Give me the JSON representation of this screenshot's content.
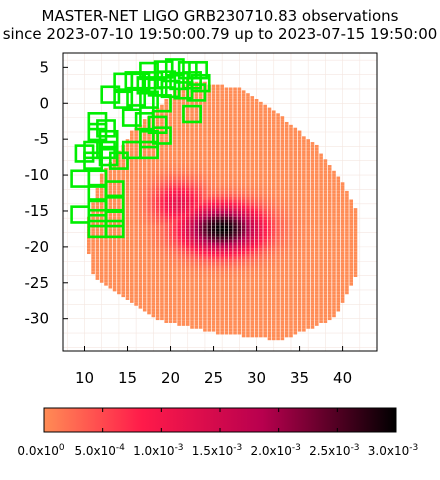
{
  "chart_data": {
    "type": "scatter",
    "title": "MASTER-NET LIGO GRB230710.83 observations",
    "subtitle": "since 2023-07-10 19:50:00.79 up to 2023-07-15 19:50:00",
    "xlabel": "",
    "ylabel": "",
    "xlim": [
      7.5,
      44
    ],
    "ylim": [
      -34.5,
      7
    ],
    "x_ticks": [
      10,
      15,
      20,
      25,
      30,
      35,
      40
    ],
    "y_ticks": [
      5,
      0,
      -5,
      -10,
      -15,
      -20,
      -25,
      -30
    ],
    "grid": true,
    "probability_map": {
      "description_region": "LIGO localization probability heatmap",
      "peak": {
        "x": 26,
        "y": -17.5
      },
      "max_value": 0.003
    },
    "colorbar": {
      "ticks": [
        "0.0x10",
        "5.0x10",
        "1.0x10",
        "1.5x10",
        "2.0x10",
        "2.5x10",
        "3.0x10"
      ],
      "exponents": [
        "0",
        "-4",
        "-3",
        "-3",
        "-3",
        "-3",
        "-3"
      ],
      "colors": [
        "#ff8c55",
        "#ff1a4a",
        "#b8004e",
        "#000000"
      ]
    },
    "series": [
      {
        "marker": "square-outline",
        "color": "#00ee00",
        "fields": [
          [
            17.5,
            4.5
          ],
          [
            19.2,
            4.7
          ],
          [
            20.5,
            5
          ],
          [
            22,
            4.6
          ],
          [
            23.2,
            4.6
          ],
          [
            16.5,
            3
          ],
          [
            18,
            3.2
          ],
          [
            19.5,
            3.3
          ],
          [
            21,
            3.1
          ],
          [
            22.5,
            3.2
          ],
          [
            23.5,
            2.8
          ],
          [
            14.5,
            3
          ],
          [
            15.8,
            3.2
          ],
          [
            17.2,
            2.5
          ],
          [
            18.5,
            2.2
          ],
          [
            20,
            2
          ],
          [
            21.5,
            1.8
          ],
          [
            23,
            1.5
          ],
          [
            13,
            1.2
          ],
          [
            14.5,
            0.5
          ],
          [
            16,
            0.8
          ],
          [
            17.5,
            0.5
          ],
          [
            19,
            0
          ],
          [
            22.5,
            -1.5
          ],
          [
            15.5,
            -2
          ],
          [
            17,
            -2.5
          ],
          [
            18.5,
            -3
          ],
          [
            11.5,
            -2.5
          ],
          [
            12.5,
            -3.5
          ],
          [
            11.5,
            -4
          ],
          [
            12.8,
            -5
          ],
          [
            17.5,
            -5
          ],
          [
            19,
            -4.5
          ],
          [
            11,
            -6.5
          ],
          [
            12.5,
            -6.5
          ],
          [
            10,
            -7
          ],
          [
            11,
            -8
          ],
          [
            12.8,
            -7.5
          ],
          [
            14,
            -8
          ],
          [
            15.5,
            -6.5
          ],
          [
            17.5,
            -6.5
          ],
          [
            9.5,
            -10.5
          ],
          [
            11.5,
            -10.5
          ],
          [
            13.5,
            -12
          ],
          [
            11.5,
            -12.5
          ],
          [
            13.5,
            -14
          ],
          [
            11.5,
            -14.5
          ],
          [
            9.5,
            -15.5
          ],
          [
            11.5,
            -16
          ],
          [
            13.5,
            -16
          ],
          [
            11.5,
            -17.5
          ],
          [
            13.5,
            -17.5
          ]
        ]
      }
    ]
  }
}
